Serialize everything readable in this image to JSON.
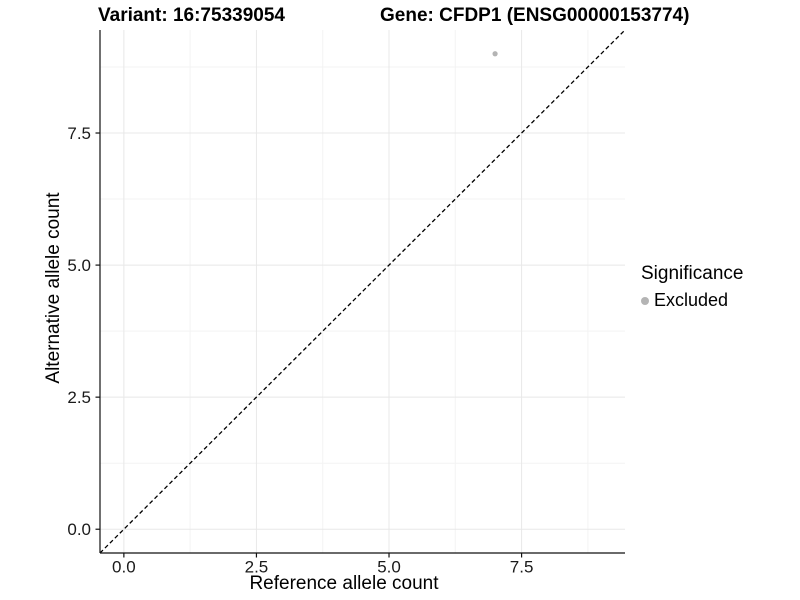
{
  "chart_data": {
    "type": "scatter",
    "title_left": "Variant: 16:75339054",
    "title_right": "Gene: CFDP1 (ENSG00000153774)",
    "xlabel": "Reference allele count",
    "ylabel": "Alternative allele count",
    "xlim": [
      -0.45,
      9.45
    ],
    "ylim": [
      -0.45,
      9.45
    ],
    "x_major_ticks": [
      0,
      2.5,
      5,
      7.5
    ],
    "x_tick_labels": [
      "0.0",
      "2.5",
      "5.0",
      "7.5"
    ],
    "y_major_ticks": [
      0,
      2.5,
      5,
      7.5
    ],
    "y_tick_labels": [
      "0.0",
      "2.5",
      "5.0",
      "7.5"
    ],
    "x_minor_ticks": [
      1.25,
      3.75,
      6.25,
      8.75
    ],
    "y_minor_ticks": [
      1.25,
      3.75,
      6.25,
      8.75
    ],
    "grid": "major+minor",
    "points": [
      {
        "x": 7,
        "y": 9,
        "series": "Excluded"
      }
    ],
    "reference_line": {
      "type": "identity",
      "slope": 1,
      "intercept": 0,
      "style": "dashed",
      "color": "#000000"
    },
    "legend": {
      "title": "Significance",
      "position": "right",
      "items": [
        {
          "label": "Excluded",
          "color": "#b4b4b4",
          "marker": "circle"
        }
      ]
    },
    "colors": {
      "point": "#b4b4b4",
      "grid_major": "#e8e8e8",
      "grid_minor": "#f3f3f3",
      "axis": "#111111",
      "text": "#000000"
    }
  }
}
